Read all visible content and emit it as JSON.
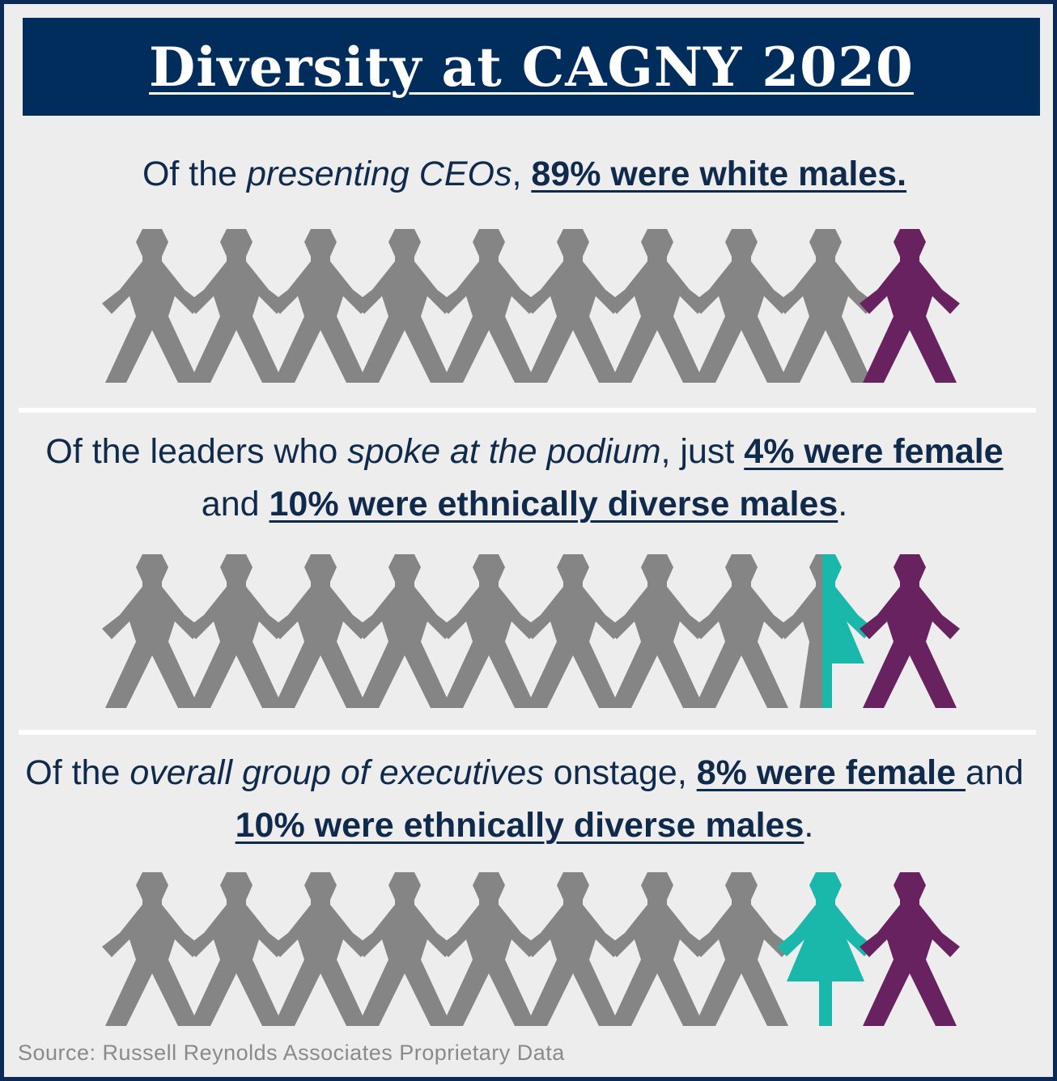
{
  "title": "Diversity at CAGNY 2020",
  "colors": {
    "banner": "#002d5c",
    "text": "#102a4c",
    "white_male": "#858585",
    "female": "#1ab8aa",
    "diverse_male": "#68225f"
  },
  "sections": [
    {
      "intro": "Of the ",
      "italic": "presenting CEOs",
      "mid": ", ",
      "stat1": "89% were white males.",
      "stat_join": "",
      "stat2": "",
      "end": "",
      "figures": [
        "gray",
        "gray",
        "gray",
        "gray",
        "gray",
        "gray",
        "gray",
        "gray",
        "gray",
        "purple"
      ]
    },
    {
      "intro": "Of the leaders who ",
      "italic": "spoke at the podium",
      "mid": ", just ",
      "stat1": "4% were female ",
      "stat_join": "and ",
      "stat2": "10% were ethnically diverse males",
      "end": ".",
      "figures": [
        "gray",
        "gray",
        "gray",
        "gray",
        "gray",
        "gray",
        "gray",
        "gray",
        "half-teal",
        "purple"
      ]
    },
    {
      "intro": "Of the ",
      "italic": "overall group of executives",
      "mid": " onstage, ",
      "stat1": "8% were female ",
      "stat_join": "and ",
      "stat2": "10% were ethnically diverse males",
      "end": ".",
      "figures": [
        "gray",
        "gray",
        "gray",
        "gray",
        "gray",
        "gray",
        "gray",
        "gray",
        "teal",
        "purple"
      ]
    }
  ],
  "source": "Source: Russell Reynolds Associates Proprietary Data"
}
